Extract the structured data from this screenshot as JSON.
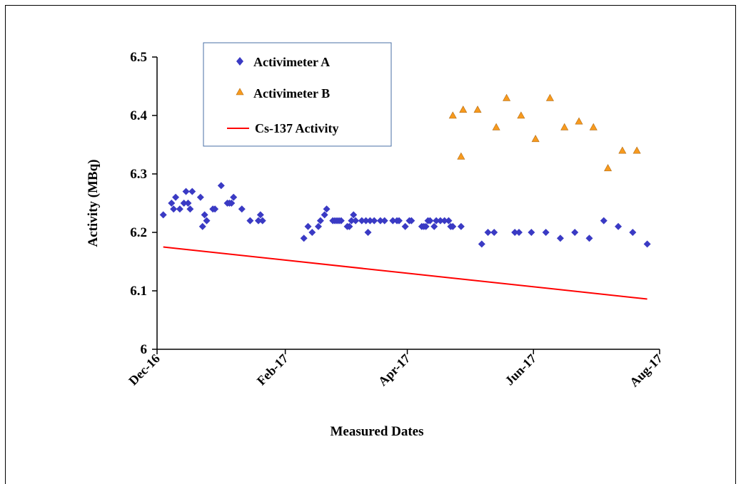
{
  "chart_data": {
    "type": "scatter",
    "xlabel": "Measured Dates",
    "ylabel": "Activity (MBq)",
    "ylim": [
      6,
      6.5
    ],
    "yticks": [
      "6",
      "6.1",
      "6.2",
      "6.3",
      "6.4",
      "6.5"
    ],
    "xlim": [
      "2016-12-01",
      "2017-08-01"
    ],
    "xticks": [
      {
        "date": "2016-12-01",
        "label": "Dec-16"
      },
      {
        "date": "2017-02-01",
        "label": "Feb-17"
      },
      {
        "date": "2017-04-01",
        "label": "Apr-17"
      },
      {
        "date": "2017-06-01",
        "label": "Jun-17"
      },
      {
        "date": "2017-08-01",
        "label": "Aug-17"
      }
    ],
    "legend_position": "top-left",
    "grid": false,
    "series": [
      {
        "name": "Activimeter A",
        "marker": "diamond",
        "color": "#3a3ac4",
        "points": [
          [
            "2016-12-04",
            6.23
          ],
          [
            "2016-12-08",
            6.25
          ],
          [
            "2016-12-09",
            6.24
          ],
          [
            "2016-12-10",
            6.26
          ],
          [
            "2016-12-12",
            6.24
          ],
          [
            "2016-12-14",
            6.25
          ],
          [
            "2016-12-15",
            6.27
          ],
          [
            "2016-12-16",
            6.25
          ],
          [
            "2016-12-17",
            6.24
          ],
          [
            "2016-12-18",
            6.27
          ],
          [
            "2016-12-22",
            6.26
          ],
          [
            "2016-12-23",
            6.21
          ],
          [
            "2016-12-24",
            6.23
          ],
          [
            "2016-12-25",
            6.22
          ],
          [
            "2016-12-28",
            6.24
          ],
          [
            "2016-12-29",
            6.24
          ],
          [
            "2017-01-01",
            6.28
          ],
          [
            "2017-01-04",
            6.25
          ],
          [
            "2017-01-05",
            6.25
          ],
          [
            "2017-01-06",
            6.25
          ],
          [
            "2017-01-07",
            6.26
          ],
          [
            "2017-01-11",
            6.24
          ],
          [
            "2017-01-15",
            6.22
          ],
          [
            "2017-01-19",
            6.22
          ],
          [
            "2017-01-20",
            6.23
          ],
          [
            "2017-01-21",
            6.22
          ],
          [
            "2017-02-10",
            6.19
          ],
          [
            "2017-02-12",
            6.21
          ],
          [
            "2017-02-14",
            6.2
          ],
          [
            "2017-02-17",
            6.21
          ],
          [
            "2017-02-18",
            6.22
          ],
          [
            "2017-02-20",
            6.23
          ],
          [
            "2017-02-21",
            6.24
          ],
          [
            "2017-02-24",
            6.22
          ],
          [
            "2017-02-25",
            6.22
          ],
          [
            "2017-02-26",
            6.22
          ],
          [
            "2017-02-27",
            6.22
          ],
          [
            "2017-02-28",
            6.22
          ],
          [
            "2017-03-03",
            6.21
          ],
          [
            "2017-03-04",
            6.21
          ],
          [
            "2017-03-05",
            6.22
          ],
          [
            "2017-03-06",
            6.23
          ],
          [
            "2017-03-07",
            6.22
          ],
          [
            "2017-03-10",
            6.22
          ],
          [
            "2017-03-12",
            6.22
          ],
          [
            "2017-03-13",
            6.2
          ],
          [
            "2017-03-14",
            6.22
          ],
          [
            "2017-03-16",
            6.22
          ],
          [
            "2017-03-19",
            6.22
          ],
          [
            "2017-03-21",
            6.22
          ],
          [
            "2017-03-25",
            6.22
          ],
          [
            "2017-03-27",
            6.22
          ],
          [
            "2017-03-28",
            6.22
          ],
          [
            "2017-03-31",
            6.21
          ],
          [
            "2017-04-02",
            6.22
          ],
          [
            "2017-04-03",
            6.22
          ],
          [
            "2017-04-08",
            6.21
          ],
          [
            "2017-04-09",
            6.21
          ],
          [
            "2017-04-10",
            6.21
          ],
          [
            "2017-04-11",
            6.22
          ],
          [
            "2017-04-12",
            6.22
          ],
          [
            "2017-04-14",
            6.21
          ],
          [
            "2017-04-15",
            6.22
          ],
          [
            "2017-04-17",
            6.22
          ],
          [
            "2017-04-19",
            6.22
          ],
          [
            "2017-04-21",
            6.22
          ],
          [
            "2017-04-22",
            6.21
          ],
          [
            "2017-04-23",
            6.21
          ],
          [
            "2017-04-27",
            6.21
          ],
          [
            "2017-05-07",
            6.18
          ],
          [
            "2017-05-10",
            6.2
          ],
          [
            "2017-05-13",
            6.2
          ],
          [
            "2017-05-23",
            6.2
          ],
          [
            "2017-05-25",
            6.2
          ],
          [
            "2017-05-31",
            6.2
          ],
          [
            "2017-06-07",
            6.2
          ],
          [
            "2017-06-14",
            6.19
          ],
          [
            "2017-06-21",
            6.2
          ],
          [
            "2017-06-28",
            6.19
          ],
          [
            "2017-07-05",
            6.22
          ],
          [
            "2017-07-12",
            6.21
          ],
          [
            "2017-07-19",
            6.2
          ],
          [
            "2017-07-26",
            6.18
          ]
        ]
      },
      {
        "name": "Activimeter B",
        "marker": "triangle",
        "color": "#f79a1e",
        "points": [
          [
            "2017-04-23",
            6.4
          ],
          [
            "2017-04-27",
            6.33
          ],
          [
            "2017-04-28",
            6.41
          ],
          [
            "2017-05-05",
            6.41
          ],
          [
            "2017-05-14",
            6.38
          ],
          [
            "2017-05-19",
            6.43
          ],
          [
            "2017-05-26",
            6.4
          ],
          [
            "2017-06-02",
            6.36
          ],
          [
            "2017-06-09",
            6.43
          ],
          [
            "2017-06-16",
            6.38
          ],
          [
            "2017-06-23",
            6.39
          ],
          [
            "2017-06-30",
            6.38
          ],
          [
            "2017-07-07",
            6.31
          ],
          [
            "2017-07-14",
            6.34
          ],
          [
            "2017-07-21",
            6.34
          ]
        ]
      },
      {
        "name": "Cs-137 Activity",
        "marker": "line",
        "color": "#ff0000",
        "points": [
          [
            "2016-12-04",
            6.175
          ],
          [
            "2017-07-26",
            6.086
          ]
        ]
      }
    ]
  }
}
